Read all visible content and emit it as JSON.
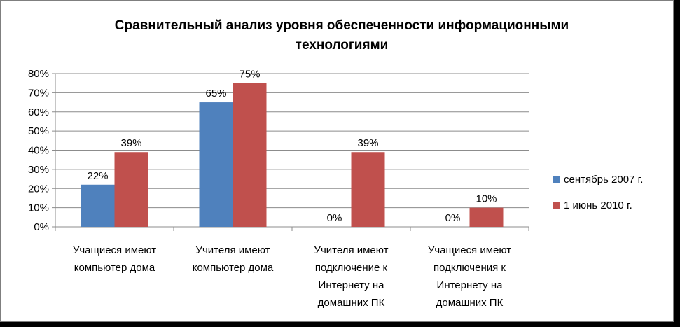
{
  "chart_data": {
    "type": "bar",
    "title_lines": [
      "Сравнительный анализ уровня обеспеченности информационными",
      "технологиями"
    ],
    "categories": [
      [
        "Учащиеся имеют",
        "компьютер дома"
      ],
      [
        "Учителя имеют",
        "компьютер дома"
      ],
      [
        "Учителя имеют",
        "подключение к",
        "Интернету на",
        "домашних ПК"
      ],
      [
        "Учащиеся имеют",
        "подключения к",
        "Интернету на",
        "домашних ПК"
      ]
    ],
    "series": [
      {
        "name": "сентябрь 2007 г.",
        "color": "#4F81BD",
        "values": [
          22,
          65,
          0,
          0
        ],
        "labels": [
          "22%",
          "65%",
          "0%",
          "0%"
        ]
      },
      {
        "name": "1 июнь 2010 г.",
        "color": "#C0504D",
        "values": [
          39,
          75,
          39,
          10
        ],
        "labels": [
          "39%",
          "75%",
          "39%",
          "10%"
        ]
      }
    ],
    "y_ticks": [
      "0%",
      "10%",
      "20%",
      "30%",
      "40%",
      "50%",
      "60%",
      "70%",
      "80%"
    ],
    "ylim": [
      0,
      80
    ],
    "grid": true,
    "legend_position": "right"
  }
}
